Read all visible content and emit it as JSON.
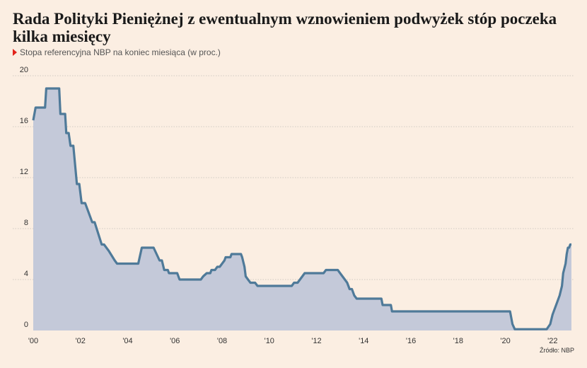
{
  "header": {
    "title": "Rada Polityki Pieniężnej z ewentualnym wznowieniem podwyżek stóp poczeka kilka miesięcy",
    "subtitle": "Stopa referencyjna NBP na koniec miesiąca (w proc.)",
    "source": "Źródło: NBP"
  },
  "colors": {
    "line": "#4f7a99",
    "area": "#c4c9d9",
    "marker": "#e2231a"
  },
  "chart_data": {
    "type": "area",
    "title": "Rada Polityki Pieniężnej z ewentualnym wznowieniem podwyżek stóp poczeka kilka miesięcy",
    "subtitle": "Stopa referencyjna NBP na koniec miesiąca (w proc.)",
    "ylim": [
      0,
      20
    ],
    "xlim": [
      2000,
      2022.8
    ],
    "grid": true,
    "y_ticks": [
      {
        "value": 0,
        "label": "0"
      },
      {
        "value": 4,
        "label": "4"
      },
      {
        "value": 8,
        "label": "8"
      },
      {
        "value": 12,
        "label": "12"
      },
      {
        "value": 16,
        "label": "16"
      },
      {
        "value": 20,
        "label": "20"
      }
    ],
    "x_ticks": [
      {
        "value": 2000,
        "label": "'00"
      },
      {
        "value": 2002,
        "label": "'02"
      },
      {
        "value": 2004,
        "label": "'04"
      },
      {
        "value": 2006,
        "label": "'06"
      },
      {
        "value": 2008,
        "label": "'08"
      },
      {
        "value": 2010,
        "label": "'10"
      },
      {
        "value": 2012,
        "label": "'12"
      },
      {
        "value": 2014,
        "label": "'14"
      },
      {
        "value": 2016,
        "label": "'16"
      },
      {
        "value": 2018,
        "label": "'18"
      },
      {
        "value": 2020,
        "label": "'20"
      },
      {
        "value": 2022,
        "label": "'22"
      }
    ],
    "series": [
      {
        "points": [
          [
            2000.0,
            16.5
          ],
          [
            2000.1,
            17.5
          ],
          [
            2000.5,
            17.5
          ],
          [
            2000.55,
            19.0
          ],
          [
            2001.1,
            19.0
          ],
          [
            2001.15,
            17.0
          ],
          [
            2001.35,
            17.0
          ],
          [
            2001.4,
            15.5
          ],
          [
            2001.5,
            15.5
          ],
          [
            2001.58,
            14.5
          ],
          [
            2001.7,
            14.5
          ],
          [
            2001.85,
            11.5
          ],
          [
            2001.95,
            11.5
          ],
          [
            2002.05,
            10.0
          ],
          [
            2002.2,
            10.0
          ],
          [
            2002.5,
            8.5
          ],
          [
            2002.6,
            8.5
          ],
          [
            2002.9,
            6.75
          ],
          [
            2003.0,
            6.75
          ],
          [
            2003.2,
            6.25
          ],
          [
            2003.45,
            5.5
          ],
          [
            2003.55,
            5.25
          ],
          [
            2004.45,
            5.25
          ],
          [
            2004.6,
            6.5
          ],
          [
            2005.1,
            6.5
          ],
          [
            2005.35,
            5.5
          ],
          [
            2005.45,
            5.5
          ],
          [
            2005.55,
            4.75
          ],
          [
            2005.7,
            4.75
          ],
          [
            2005.75,
            4.5
          ],
          [
            2006.1,
            4.5
          ],
          [
            2006.2,
            4.0
          ],
          [
            2007.1,
            4.0
          ],
          [
            2007.2,
            4.25
          ],
          [
            2007.35,
            4.5
          ],
          [
            2007.5,
            4.5
          ],
          [
            2007.55,
            4.75
          ],
          [
            2007.7,
            4.75
          ],
          [
            2007.8,
            5.0
          ],
          [
            2007.9,
            5.0
          ],
          [
            2008.1,
            5.5
          ],
          [
            2008.15,
            5.75
          ],
          [
            2008.35,
            5.75
          ],
          [
            2008.4,
            6.0
          ],
          [
            2008.8,
            6.0
          ],
          [
            2008.85,
            5.75
          ],
          [
            2008.95,
            5.0
          ],
          [
            2009.0,
            4.25
          ],
          [
            2009.1,
            4.0
          ],
          [
            2009.2,
            3.75
          ],
          [
            2009.4,
            3.75
          ],
          [
            2009.5,
            3.5
          ],
          [
            2010.95,
            3.5
          ],
          [
            2011.05,
            3.75
          ],
          [
            2011.2,
            3.75
          ],
          [
            2011.4,
            4.25
          ],
          [
            2011.5,
            4.5
          ],
          [
            2012.3,
            4.5
          ],
          [
            2012.4,
            4.75
          ],
          [
            2012.9,
            4.75
          ],
          [
            2013.0,
            4.5
          ],
          [
            2013.2,
            4.0
          ],
          [
            2013.3,
            3.75
          ],
          [
            2013.4,
            3.25
          ],
          [
            2013.5,
            3.25
          ],
          [
            2013.6,
            2.75
          ],
          [
            2013.7,
            2.5
          ],
          [
            2014.75,
            2.5
          ],
          [
            2014.8,
            2.0
          ],
          [
            2015.15,
            2.0
          ],
          [
            2015.2,
            1.5
          ],
          [
            2020.2,
            1.5
          ],
          [
            2020.3,
            0.5
          ],
          [
            2020.4,
            0.1
          ],
          [
            2021.75,
            0.1
          ],
          [
            2021.9,
            0.5
          ],
          [
            2022.0,
            1.25
          ],
          [
            2022.2,
            2.25
          ],
          [
            2022.3,
            2.75
          ],
          [
            2022.4,
            3.5
          ],
          [
            2022.45,
            4.5
          ],
          [
            2022.55,
            5.25
          ],
          [
            2022.6,
            6.0
          ],
          [
            2022.65,
            6.5
          ],
          [
            2022.7,
            6.5
          ],
          [
            2022.75,
            6.75
          ],
          [
            2022.8,
            6.75
          ]
        ]
      }
    ]
  }
}
